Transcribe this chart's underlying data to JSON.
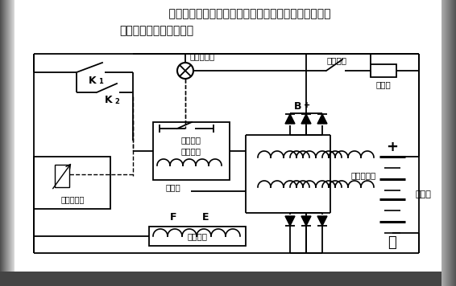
{
  "title1": "    指示充电系统的工作情况，充电指示灯亮，说明蓄电池",
  "title2": "供电或充电系统有故障。",
  "labels": {
    "K1": "K",
    "K2": "K",
    "lamp_text": "充电指示灯",
    "ignition": "点火开关",
    "fuse": "熔断器",
    "Bplus": "B",
    "relay1": "充电指示",
    "relay2": "灯继电器",
    "neutral": "中性点",
    "F": "F",
    "E": "E",
    "field": "磁场绕组",
    "alternator": "交流发电机",
    "batt_plus": "+",
    "batt_minus": "－",
    "battery": "蓄电池",
    "vreg": "电压调节器"
  },
  "lw": 1.3,
  "bg_gray": "#aaaaaa",
  "bg_dark": "#555555",
  "white": "#ffffff"
}
